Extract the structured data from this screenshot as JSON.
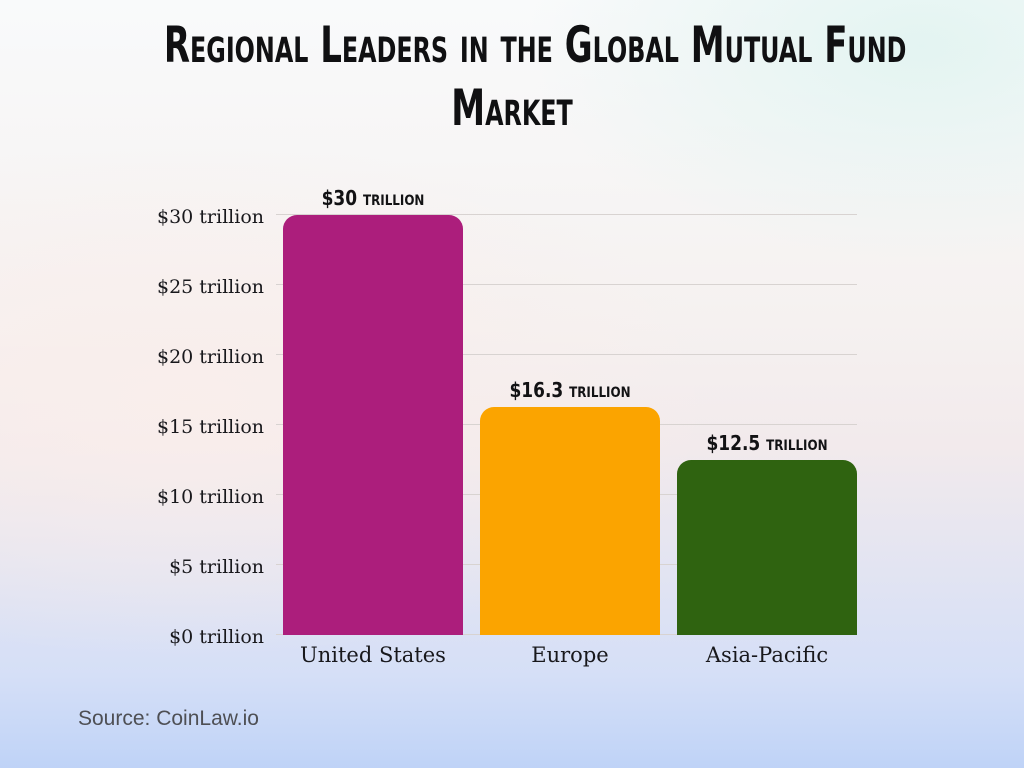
{
  "title": {
    "text": "Regional Leaders in the Global Mutual Fund Market",
    "lines": [
      "Regional Leaders in the Global Mutual Fund",
      "Market"
    ]
  },
  "source": "Source: CoinLaw.io",
  "colors": {
    "title_text": "#101012",
    "axis_text": "#18181c",
    "gridline": "#d8d3d1",
    "source_text": "#4e4f54",
    "background_top": "#f9fafb",
    "background_middle": "#f2eaec",
    "background_bottom": "#bfd3f7"
  },
  "chart_data": {
    "type": "bar",
    "categories": [
      "United States",
      "Europe",
      "Asia-Pacific"
    ],
    "values": [
      30,
      16.3,
      12.5
    ],
    "bar_labels": [
      "$30 trillion",
      "$16.3 trillion",
      "$12.5 trillion"
    ],
    "bar_colors": [
      "#ac1e7c",
      "#fba400",
      "#2f6310"
    ],
    "y_ticks": [
      "$0 trillion",
      "$5 trillion",
      "$10 trillion",
      "$15 trillion",
      "$20 trillion",
      "$25 trillion",
      "$30 trillion"
    ],
    "y_tick_values": [
      0,
      5,
      10,
      15,
      20,
      25,
      30
    ],
    "ylim": [
      0,
      30
    ],
    "xlabel": "",
    "ylabel": "",
    "grid": true,
    "legend": "none",
    "title": "Regional Leaders in the Global Mutual Fund Market"
  }
}
